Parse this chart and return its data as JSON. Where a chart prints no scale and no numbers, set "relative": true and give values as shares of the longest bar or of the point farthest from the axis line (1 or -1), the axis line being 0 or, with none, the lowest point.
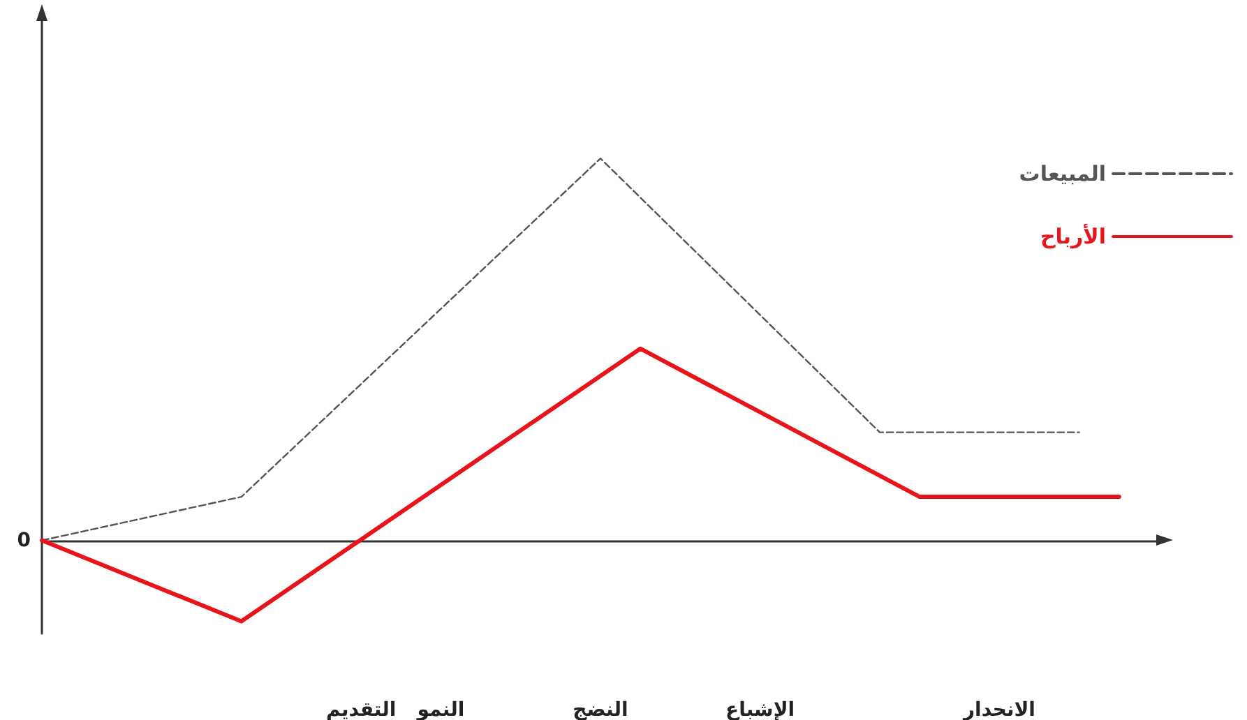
{
  "chart_data": {
    "type": "line",
    "relative": true,
    "categories": [
      null,
      null,
      null,
      null,
      null,
      null,
      null,
      null,
      "التقديم",
      null,
      "النمو",
      null,
      null,
      null,
      "النضج",
      null,
      null,
      null,
      "الإشباع",
      null,
      null,
      null,
      null,
      null,
      "الانحدار",
      null,
      null,
      null,
      null
    ],
    "tick_labels": "x",
    "grid": false,
    "legend": "top right",
    "marker": "none",
    "annotations": [
      "0"
    ],
    "series": [
      {
        "name": "المبيعات",
        "color": "#555555",
        "line_style": "dashed",
        "values": [
          0,
          null,
          null,
          null,
          null,
          0.114,
          null,
          null,
          null,
          null,
          null,
          null,
          null,
          null,
          1,
          null,
          null,
          null,
          null,
          null,
          null,
          0.283,
          null,
          null,
          null,
          null,
          0.283,
          null,
          null
        ]
      },
      {
        "name": "الأرباح",
        "color": "#e8141b",
        "line_style": "solid",
        "values": [
          0,
          null,
          null,
          null,
          null,
          -0.212,
          null,
          null,
          null,
          null,
          null,
          null,
          null,
          null,
          null,
          0.502,
          null,
          null,
          null,
          null,
          null,
          null,
          0.114,
          null,
          null,
          null,
          null,
          0.114,
          null
        ]
      }
    ]
  }
}
